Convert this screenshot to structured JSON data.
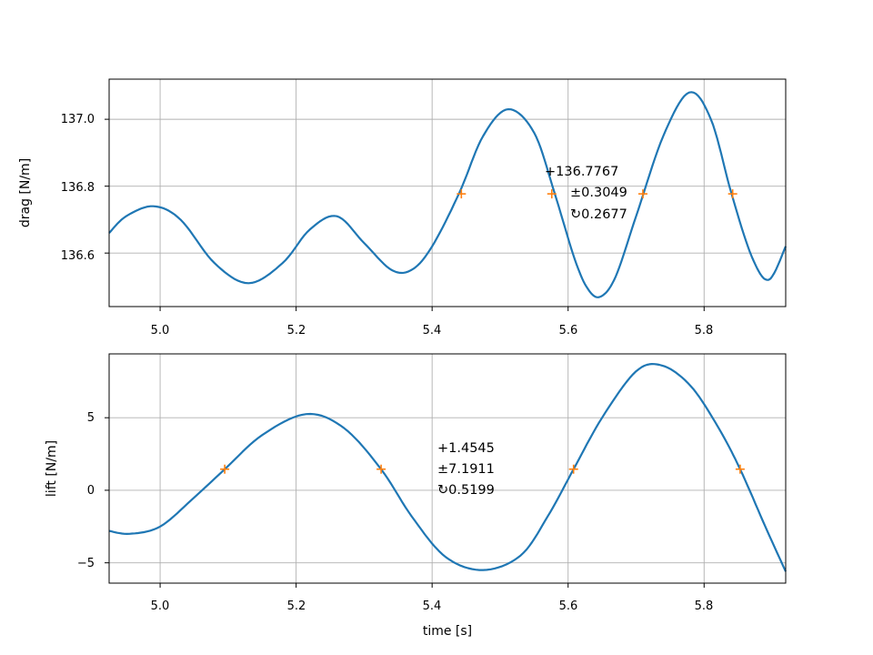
{
  "chart_data": [
    {
      "type": "line",
      "title": "",
      "xlabel": "",
      "ylabel": "drag [N/m]",
      "xlim": [
        4.925,
        5.92
      ],
      "ylim": [
        136.44,
        137.12
      ],
      "grid": true,
      "xticks": [
        5.0,
        5.2,
        5.4,
        5.6,
        5.8
      ],
      "xtick_labels": [
        "5.0",
        "5.2",
        "5.4",
        "5.6",
        "5.8"
      ],
      "yticks": [
        136.6,
        136.8,
        137.0
      ],
      "ytick_labels": [
        "136.6",
        "136.8",
        "137.0"
      ],
      "series": [
        {
          "color": "#1f77b4",
          "x": [
            4.925,
            4.95,
            4.99,
            5.03,
            5.08,
            5.13,
            5.18,
            5.22,
            5.26,
            5.3,
            5.34,
            5.37,
            5.4,
            5.44,
            5.475,
            5.512,
            5.55,
            5.58,
            5.61,
            5.63,
            5.648,
            5.67,
            5.7,
            5.74,
            5.778,
            5.81,
            5.84,
            5.87,
            5.895,
            5.92
          ],
          "y": [
            136.66,
            136.71,
            136.74,
            136.7,
            136.57,
            136.51,
            136.57,
            136.67,
            136.71,
            136.63,
            136.55,
            136.55,
            136.62,
            136.78,
            136.95,
            137.03,
            136.96,
            136.78,
            136.58,
            136.49,
            136.47,
            136.53,
            136.71,
            136.95,
            137.08,
            137.0,
            136.78,
            136.59,
            136.52,
            136.62
          ]
        },
        {
          "color": "#ff7f0e",
          "marker": "+",
          "x": [
            5.443,
            5.576,
            5.71,
            5.842
          ],
          "y": [
            136.777,
            136.777,
            136.777,
            136.777
          ]
        }
      ],
      "annotations": [
        "+136.7767",
        "±0.3049",
        "↻0.2677"
      ]
    },
    {
      "type": "line",
      "title": "",
      "xlabel": "time [s]",
      "ylabel": "lift [N/m]",
      "xlim": [
        4.925,
        5.92
      ],
      "ylim": [
        -6.4,
        9.4
      ],
      "grid": true,
      "xticks": [
        5.0,
        5.2,
        5.4,
        5.6,
        5.8
      ],
      "xtick_labels": [
        "5.0",
        "5.2",
        "5.4",
        "5.6",
        "5.8"
      ],
      "yticks": [
        -5,
        0,
        5
      ],
      "ytick_labels": [
        "−5",
        "0",
        "5"
      ],
      "series": [
        {
          "color": "#1f77b4",
          "x": [
            4.925,
            4.955,
            5.0,
            5.05,
            5.095,
            5.15,
            5.215,
            5.27,
            5.325,
            5.37,
            5.42,
            5.475,
            5.53,
            5.57,
            5.608,
            5.65,
            5.7,
            5.738,
            5.78,
            5.82,
            5.853,
            5.89,
            5.92
          ],
          "y": [
            -2.8,
            -3.0,
            -2.5,
            -0.5,
            1.45,
            3.8,
            5.25,
            4.3,
            1.45,
            -1.8,
            -4.6,
            -5.5,
            -4.5,
            -1.8,
            1.45,
            5.0,
            8.2,
            8.6,
            7.2,
            4.4,
            1.45,
            -2.5,
            -5.6
          ]
        },
        {
          "color": "#ff7f0e",
          "marker": "+",
          "x": [
            5.095,
            5.325,
            5.608,
            5.853
          ],
          "y": [
            1.4545,
            1.4545,
            1.4545,
            1.4545
          ]
        }
      ],
      "annotations": [
        "+1.4545",
        "±7.1911",
        "↻0.5199"
      ]
    }
  ]
}
